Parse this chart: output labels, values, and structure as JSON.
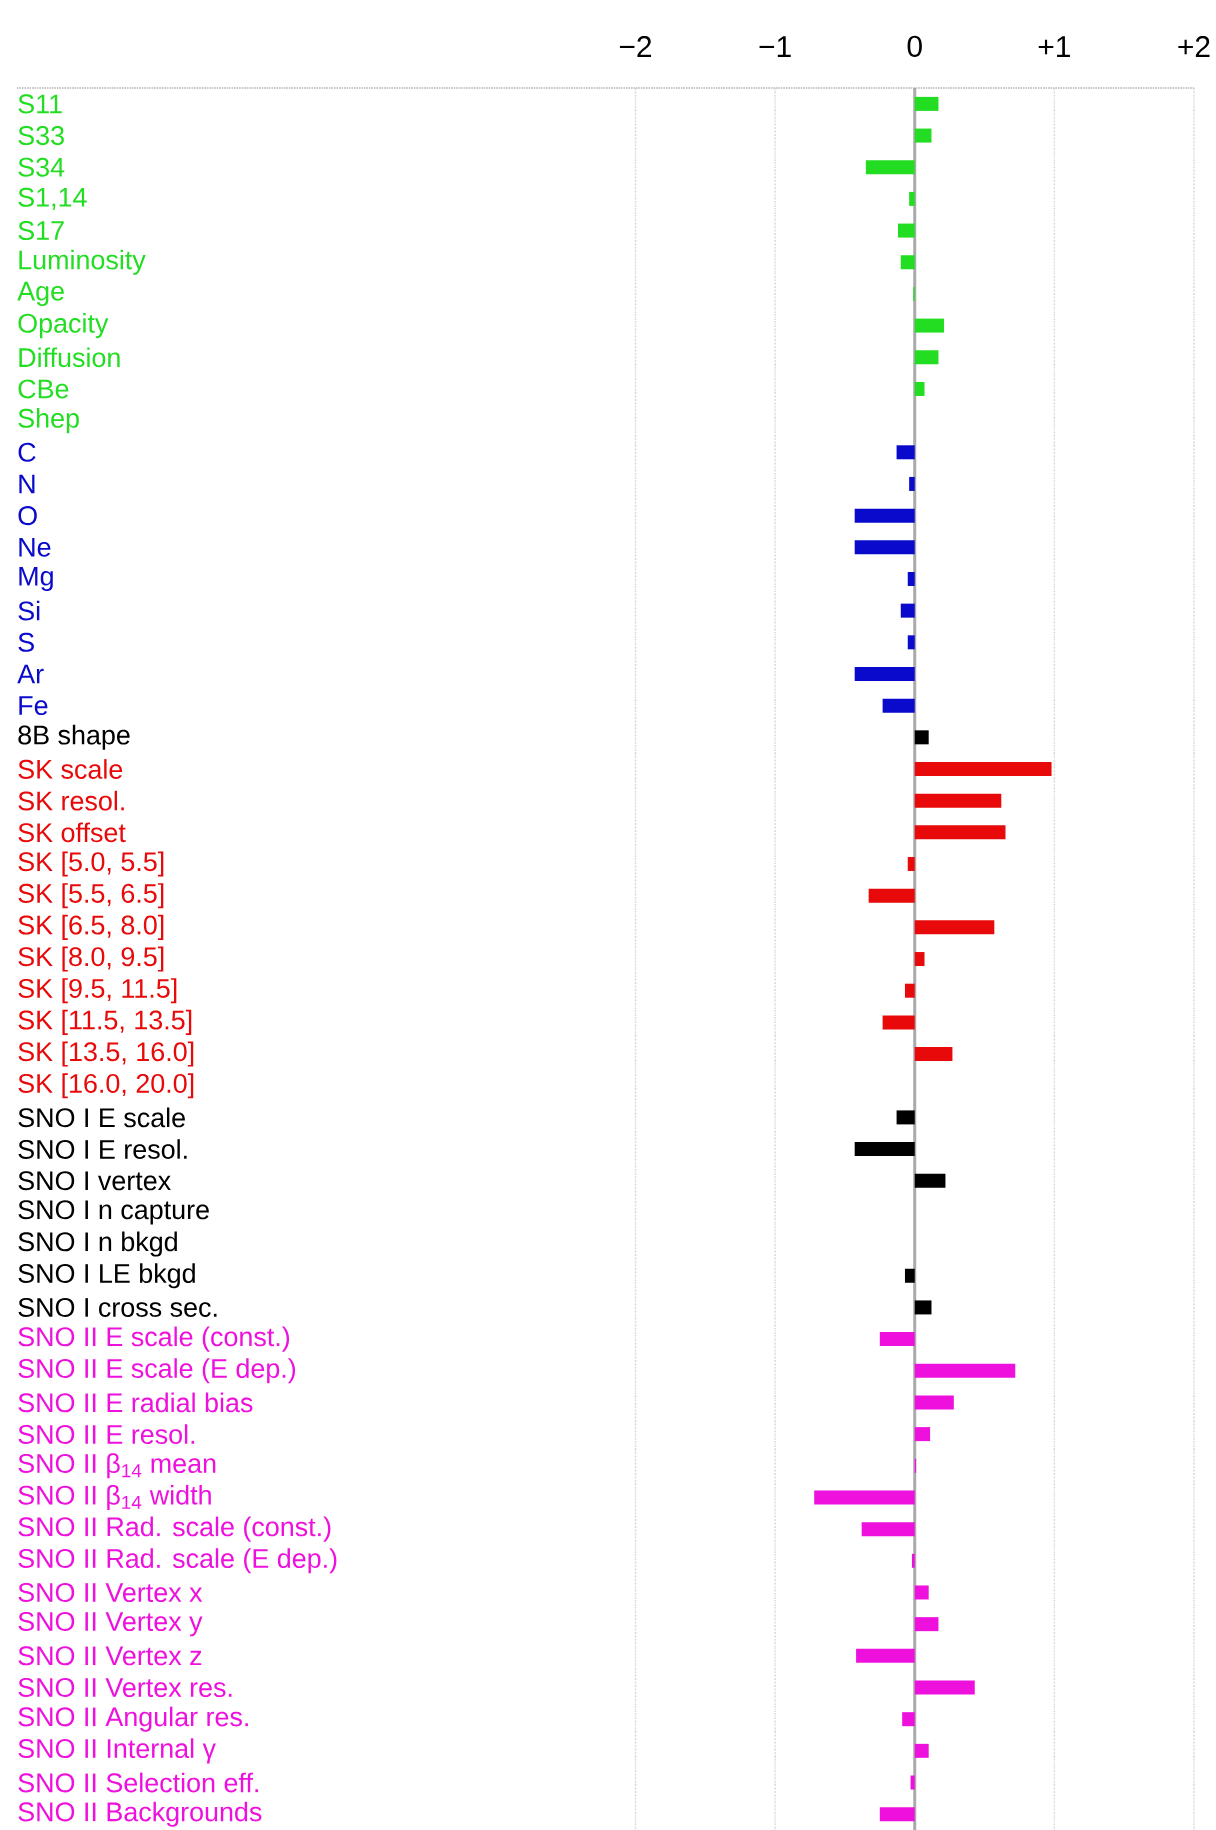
{
  "chart_data": {
    "type": "bar",
    "orientation": "horizontal",
    "categories": [
      "S11",
      "S33",
      "S34",
      "S1,14",
      "S17",
      "Luminosity",
      "Age",
      "Opacity",
      "Diffusion",
      "CBe",
      "Shep",
      "C",
      "N",
      "O",
      "Ne",
      "Mg",
      "Si",
      "S",
      "Ar",
      "Fe",
      "8B shape",
      "SK scale",
      "SK resol.",
      "SK offset",
      "SK [5.0, 5.5]",
      "SK [5.5, 6.5]",
      "SK [6.5, 8.0]",
      "SK [8.0, 9.5]",
      "SK [9.5, 11.5]",
      "SK [11.5, 13.5]",
      "SK [13.5, 16.0]",
      "SK [16.0, 20.0]",
      "SNO I E scale",
      "SNO I E resol.",
      "SNO I vertex",
      "SNO I n capture",
      "SNO I n bkgd",
      "SNO I LE bkgd",
      "SNO I cross sec.",
      "SNO II E scale (const.)",
      "SNO II E scale (E dep.)",
      "SNO II E radial bias",
      "SNO II E resol.",
      "SNO II β$_{14}$ mean",
      "SNO II β$_{14}$ width",
      "SNO II Rad. scale (const.)",
      "SNO II Rad. scale (E dep.)",
      "SNO II Vertex x",
      "SNO II Vertex y",
      "SNO II Vertex z",
      "SNO II Vertex res.",
      "SNO II Angular res.",
      "SNO II Internal γ",
      "SNO II Selection eff.",
      "SNO II Backgrounds"
    ],
    "values": [
      0.17,
      0.12,
      -0.35,
      -0.04,
      -0.12,
      -0.1,
      -0.01,
      0.21,
      0.17,
      0.07,
      0,
      -0.13,
      -0.04,
      -0.43,
      -0.43,
      -0.05,
      -0.1,
      -0.05,
      -0.43,
      -0.23,
      0.1,
      0.98,
      0.62,
      0.65,
      -0.05,
      -0.33,
      0.57,
      0.07,
      -0.07,
      -0.23,
      0.27,
      0,
      -0.13,
      -0.43,
      0.22,
      0,
      0,
      -0.07,
      0.12,
      -0.25,
      0.72,
      0.28,
      0.11,
      0.01,
      -0.72,
      -0.38,
      -0.02,
      0.1,
      0.17,
      -0.42,
      0.43,
      -0.09,
      0.1,
      -0.03,
      -0.25
    ],
    "colors": [
      "#22dd22",
      "#22dd22",
      "#22dd22",
      "#22dd22",
      "#22dd22",
      "#22dd22",
      "#22dd22",
      "#22dd22",
      "#22dd22",
      "#22dd22",
      "#22dd22",
      "#0a0acc",
      "#0a0acc",
      "#0a0acc",
      "#0a0acc",
      "#0a0acc",
      "#0a0acc",
      "#0a0acc",
      "#0a0acc",
      "#0a0acc",
      "#000000",
      "#e80a0a",
      "#e80a0a",
      "#e80a0a",
      "#e80a0a",
      "#e80a0a",
      "#e80a0a",
      "#e80a0a",
      "#e80a0a",
      "#e80a0a",
      "#e80a0a",
      "#e80a0a",
      "#000000",
      "#000000",
      "#000000",
      "#000000",
      "#000000",
      "#000000",
      "#000000",
      "#ee11dd",
      "#ee11dd",
      "#ee11dd",
      "#ee11dd",
      "#ee11dd",
      "#ee11dd",
      "#ee11dd",
      "#ee11dd",
      "#ee11dd",
      "#ee11dd",
      "#ee11dd",
      "#ee11dd",
      "#ee11dd",
      "#ee11dd",
      "#ee11dd",
      "#ee11dd"
    ],
    "xlim": [
      -6.43,
      2
    ],
    "xticks": [
      {
        "value": -2,
        "label": "−2"
      },
      {
        "value": -1,
        "label": "−1"
      },
      0,
      {
        "value": 1,
        "label": "+1"
      },
      {
        "value": 2,
        "label": "+2"
      }
    ],
    "grid": "x",
    "ref_lines": [
      {
        "axis": "x",
        "value": 0,
        "color": "#aaaaaa"
      }
    ]
  }
}
